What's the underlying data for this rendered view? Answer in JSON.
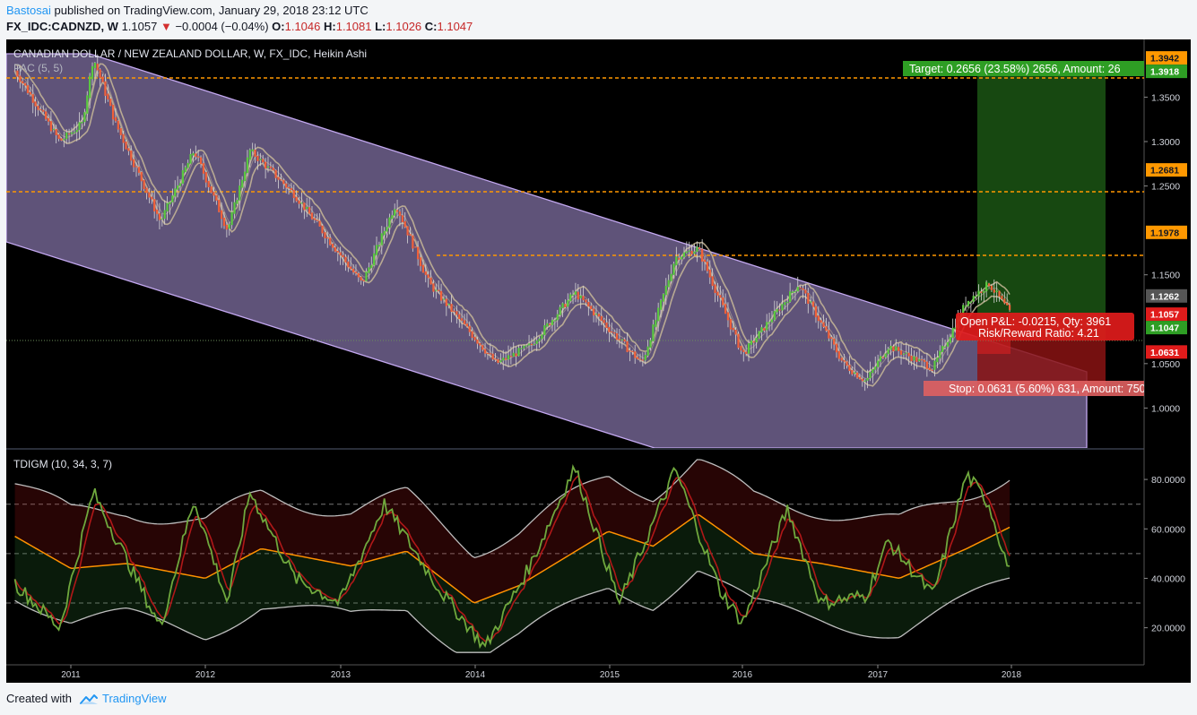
{
  "header": {
    "author": "Bastosai",
    "published_text": "published on TradingView.com, January 29, 2018 23:12 UTC",
    "symbol": "FX_IDC:CADNZD, W",
    "last_price": "1.1057",
    "change": "−0.0004 (−0.04%)",
    "open_label": "O:",
    "open": "1.1046",
    "high_label": "H:",
    "high": "1.1081",
    "low_label": "L:",
    "low": "1.1026",
    "close_label": "C:",
    "close": "1.1047"
  },
  "main_pane": {
    "title": "CANADIAN DOLLAR / NEW ZEALAND DOLLAR, W, FX_IDC, Heikin Ashi",
    "indicator": "PAC (5, 5)"
  },
  "tdi_pane": {
    "title": "TDIGM (10, 34, 3, 7)"
  },
  "position": {
    "target_text": "Target: 0.2656 (23.58%) 2656, Amount: 26",
    "stop_text": "Stop: 0.0631 (5.60%) 631, Amount: 750",
    "open_pl_text": "Open P&L: -0.0215, Qty: 3961",
    "risk_reward_text": "Risk/Reward Ratio: 4.21"
  },
  "price_labels": [
    {
      "value": "1.3942",
      "color": "#ff9800",
      "text_color": "#131722"
    },
    {
      "value": "1.3918",
      "color": "#2e9e24",
      "text_color": "#ffffff"
    },
    {
      "value": "1.2681",
      "color": "#ff9800",
      "text_color": "#131722"
    },
    {
      "value": "1.1978",
      "color": "#ff9800",
      "text_color": "#131722"
    },
    {
      "value": "1.1262",
      "color": "#555555",
      "text_color": "#ffffff"
    },
    {
      "value": "1.1057",
      "color": "#e01b1b",
      "text_color": "#ffffff"
    },
    {
      "value": "1.1047",
      "color": "#2e9e24",
      "text_color": "#ffffff"
    },
    {
      "value": "1.0631",
      "color": "#e01b1b",
      "text_color": "#ffffff"
    }
  ],
  "footer": {
    "created_with": "Created with",
    "brand": "TradingView"
  },
  "colors": {
    "background": "#000000",
    "channel_fill": "#a48fd0",
    "up_candle": "#5ac940",
    "down_candle": "#f0603a",
    "pac_band": "#c8b898",
    "orange_level": "#ff9800",
    "target_zone": "#1d5a15",
    "stop_zone": "#8a1313",
    "tdi_green": "#6fa83d",
    "tdi_red": "#b01818",
    "tdi_orange": "#ff9100",
    "tdi_band": "#bdbdbd"
  },
  "chart_data": [
    {
      "type": "candlestick",
      "title": "CANADIAN DOLLAR / NEW ZEALAND DOLLAR, W, FX_IDC, Heikin Ashi",
      "x_ticks": [
        "2011",
        "2012",
        "2013",
        "2014",
        "2015",
        "2016",
        "2017",
        "2018"
      ],
      "y_ticks": [
        "1.0000",
        "1.0500",
        "1.1500",
        "1.2500",
        "1.3000",
        "1.3500"
      ],
      "y_range": [
        0.955,
        1.415
      ],
      "horizontal_levels": [
        1.3942,
        1.2681,
        1.1978
      ],
      "approx_close_path": [
        {
          "date": "2010-08",
          "value": 1.38
        },
        {
          "date": "2010-12",
          "value": 1.3
        },
        {
          "date": "2011-02",
          "value": 1.32
        },
        {
          "date": "2011-03",
          "value": 1.395
        },
        {
          "date": "2011-05",
          "value": 1.32
        },
        {
          "date": "2011-09",
          "value": 1.21
        },
        {
          "date": "2011-12",
          "value": 1.29
        },
        {
          "date": "2012-03",
          "value": 1.2
        },
        {
          "date": "2012-05",
          "value": 1.29
        },
        {
          "date": "2012-09",
          "value": 1.24
        },
        {
          "date": "2013-03",
          "value": 1.14
        },
        {
          "date": "2013-06",
          "value": 1.23
        },
        {
          "date": "2013-09",
          "value": 1.14
        },
        {
          "date": "2014-03",
          "value": 1.05
        },
        {
          "date": "2014-06",
          "value": 1.07
        },
        {
          "date": "2014-10",
          "value": 1.13
        },
        {
          "date": "2015-04",
          "value": 1.05
        },
        {
          "date": "2015-07",
          "value": 1.17
        },
        {
          "date": "2015-09",
          "value": 1.18
        },
        {
          "date": "2016-01",
          "value": 1.06
        },
        {
          "date": "2016-06",
          "value": 1.14
        },
        {
          "date": "2016-10",
          "value": 1.05
        },
        {
          "date": "2016-12",
          "value": 1.03
        },
        {
          "date": "2017-02",
          "value": 1.07
        },
        {
          "date": "2017-06",
          "value": 1.045
        },
        {
          "date": "2017-09",
          "value": 1.12
        },
        {
          "date": "2017-11",
          "value": 1.14
        },
        {
          "date": "2018-01",
          "value": 1.1047
        }
      ]
    },
    {
      "type": "line",
      "title": "TDIGM (10, 34, 3, 7)",
      "y_ticks": [
        "20.0000",
        "40.0000",
        "60.0000",
        "80.0000"
      ],
      "y_range": [
        5,
        92
      ],
      "reference_levels": [
        30,
        50,
        70
      ],
      "series": [
        {
          "color": "#6fa83d",
          "points": [
            {
              "date": "2010-08",
              "value": 38
            },
            {
              "date": "2010-12",
              "value": 20
            },
            {
              "date": "2011-03",
              "value": 75
            },
            {
              "date": "2011-09",
              "value": 20
            },
            {
              "date": "2011-12",
              "value": 72
            },
            {
              "date": "2012-03",
              "value": 30
            },
            {
              "date": "2012-05",
              "value": 75
            },
            {
              "date": "2012-09",
              "value": 40
            },
            {
              "date": "2013-01",
              "value": 30
            },
            {
              "date": "2013-05",
              "value": 70
            },
            {
              "date": "2013-10",
              "value": 35
            },
            {
              "date": "2014-02",
              "value": 12
            },
            {
              "date": "2014-06",
              "value": 45
            },
            {
              "date": "2014-10",
              "value": 85
            },
            {
              "date": "2015-02",
              "value": 30
            },
            {
              "date": "2015-07",
              "value": 84
            },
            {
              "date": "2015-11",
              "value": 35
            },
            {
              "date": "2016-01",
              "value": 22
            },
            {
              "date": "2016-05",
              "value": 68
            },
            {
              "date": "2016-08",
              "value": 30
            },
            {
              "date": "2016-12",
              "value": 33
            },
            {
              "date": "2017-02",
              "value": 55
            },
            {
              "date": "2017-06",
              "value": 33
            },
            {
              "date": "2017-09",
              "value": 82
            },
            {
              "date": "2017-11",
              "value": 70
            },
            {
              "date": "2018-01",
              "value": 40
            }
          ]
        },
        {
          "color": "#ff9100",
          "points": [
            {
              "date": "2010-08",
              "value": 57
            },
            {
              "date": "2011-01",
              "value": 44
            },
            {
              "date": "2011-06",
              "value": 46
            },
            {
              "date": "2012-01",
              "value": 40
            },
            {
              "date": "2012-06",
              "value": 52
            },
            {
              "date": "2013-02",
              "value": 45
            },
            {
              "date": "2013-07",
              "value": 51
            },
            {
              "date": "2014-01",
              "value": 30
            },
            {
              "date": "2014-05",
              "value": 37
            },
            {
              "date": "2015-01",
              "value": 59
            },
            {
              "date": "2015-05",
              "value": 53
            },
            {
              "date": "2015-09",
              "value": 66
            },
            {
              "date": "2016-02",
              "value": 50
            },
            {
              "date": "2016-08",
              "value": 46
            },
            {
              "date": "2017-03",
              "value": 40
            },
            {
              "date": "2017-09",
              "value": 52
            },
            {
              "date": "2018-01",
              "value": 61
            }
          ]
        }
      ]
    }
  ]
}
